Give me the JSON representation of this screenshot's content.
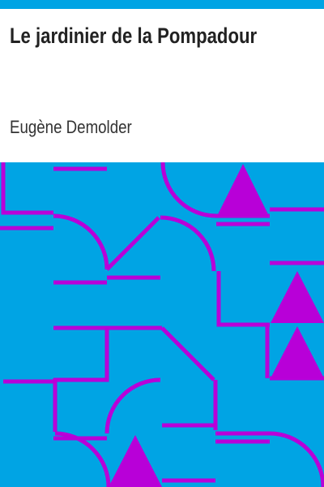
{
  "book": {
    "title": "Le jardinier de la Pompadour",
    "author": "Eugène Demolder"
  },
  "colors": {
    "accent": "#00a4e4",
    "pattern_line": "#b800d8",
    "triangle": "#b800d8"
  },
  "icons": {
    "pattern": "geometric-pattern",
    "triangle": "triangle-icon"
  }
}
